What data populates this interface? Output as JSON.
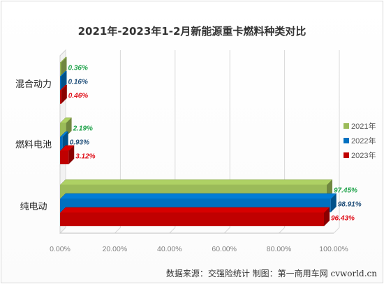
{
  "chart_data": {
    "type": "bar",
    "orientation": "horizontal",
    "style": "3d-clustered",
    "title": "2021年-2023年1-2月新能源重卡燃料种类对比",
    "categories": [
      "混合动力",
      "燃料电池",
      "纯电动"
    ],
    "series": [
      {
        "name": "2021年",
        "color": "#9bbb59",
        "label_color": "#1fa24a",
        "values": [
          0.36,
          2.19,
          97.45
        ],
        "labels": [
          "0.36%",
          "2.19%",
          "97.45%"
        ]
      },
      {
        "name": "2022年",
        "color": "#0070c0",
        "label_color": "#1f4e79",
        "values": [
          0.16,
          0.93,
          98.91
        ],
        "labels": [
          "0.16%",
          "0.93%",
          "98.91%"
        ]
      },
      {
        "name": "2023年",
        "color": "#c00000",
        "label_color": "#e0101a",
        "values": [
          0.46,
          3.12,
          96.43
        ],
        "labels": [
          "0.46%",
          "3.12%",
          "96.43%"
        ]
      }
    ],
    "xlim": [
      0,
      100
    ],
    "x_ticks": [
      0,
      20,
      40,
      60,
      80,
      100
    ],
    "x_tick_labels": [
      "0.00%",
      "20.00%",
      "40.00%",
      "60.00%",
      "80.00%",
      "100.00%"
    ],
    "grid": true,
    "legend_position": "right"
  },
  "source_note": "数据来源：交强险统计 制图：第一商用车网 cvworld.cn"
}
